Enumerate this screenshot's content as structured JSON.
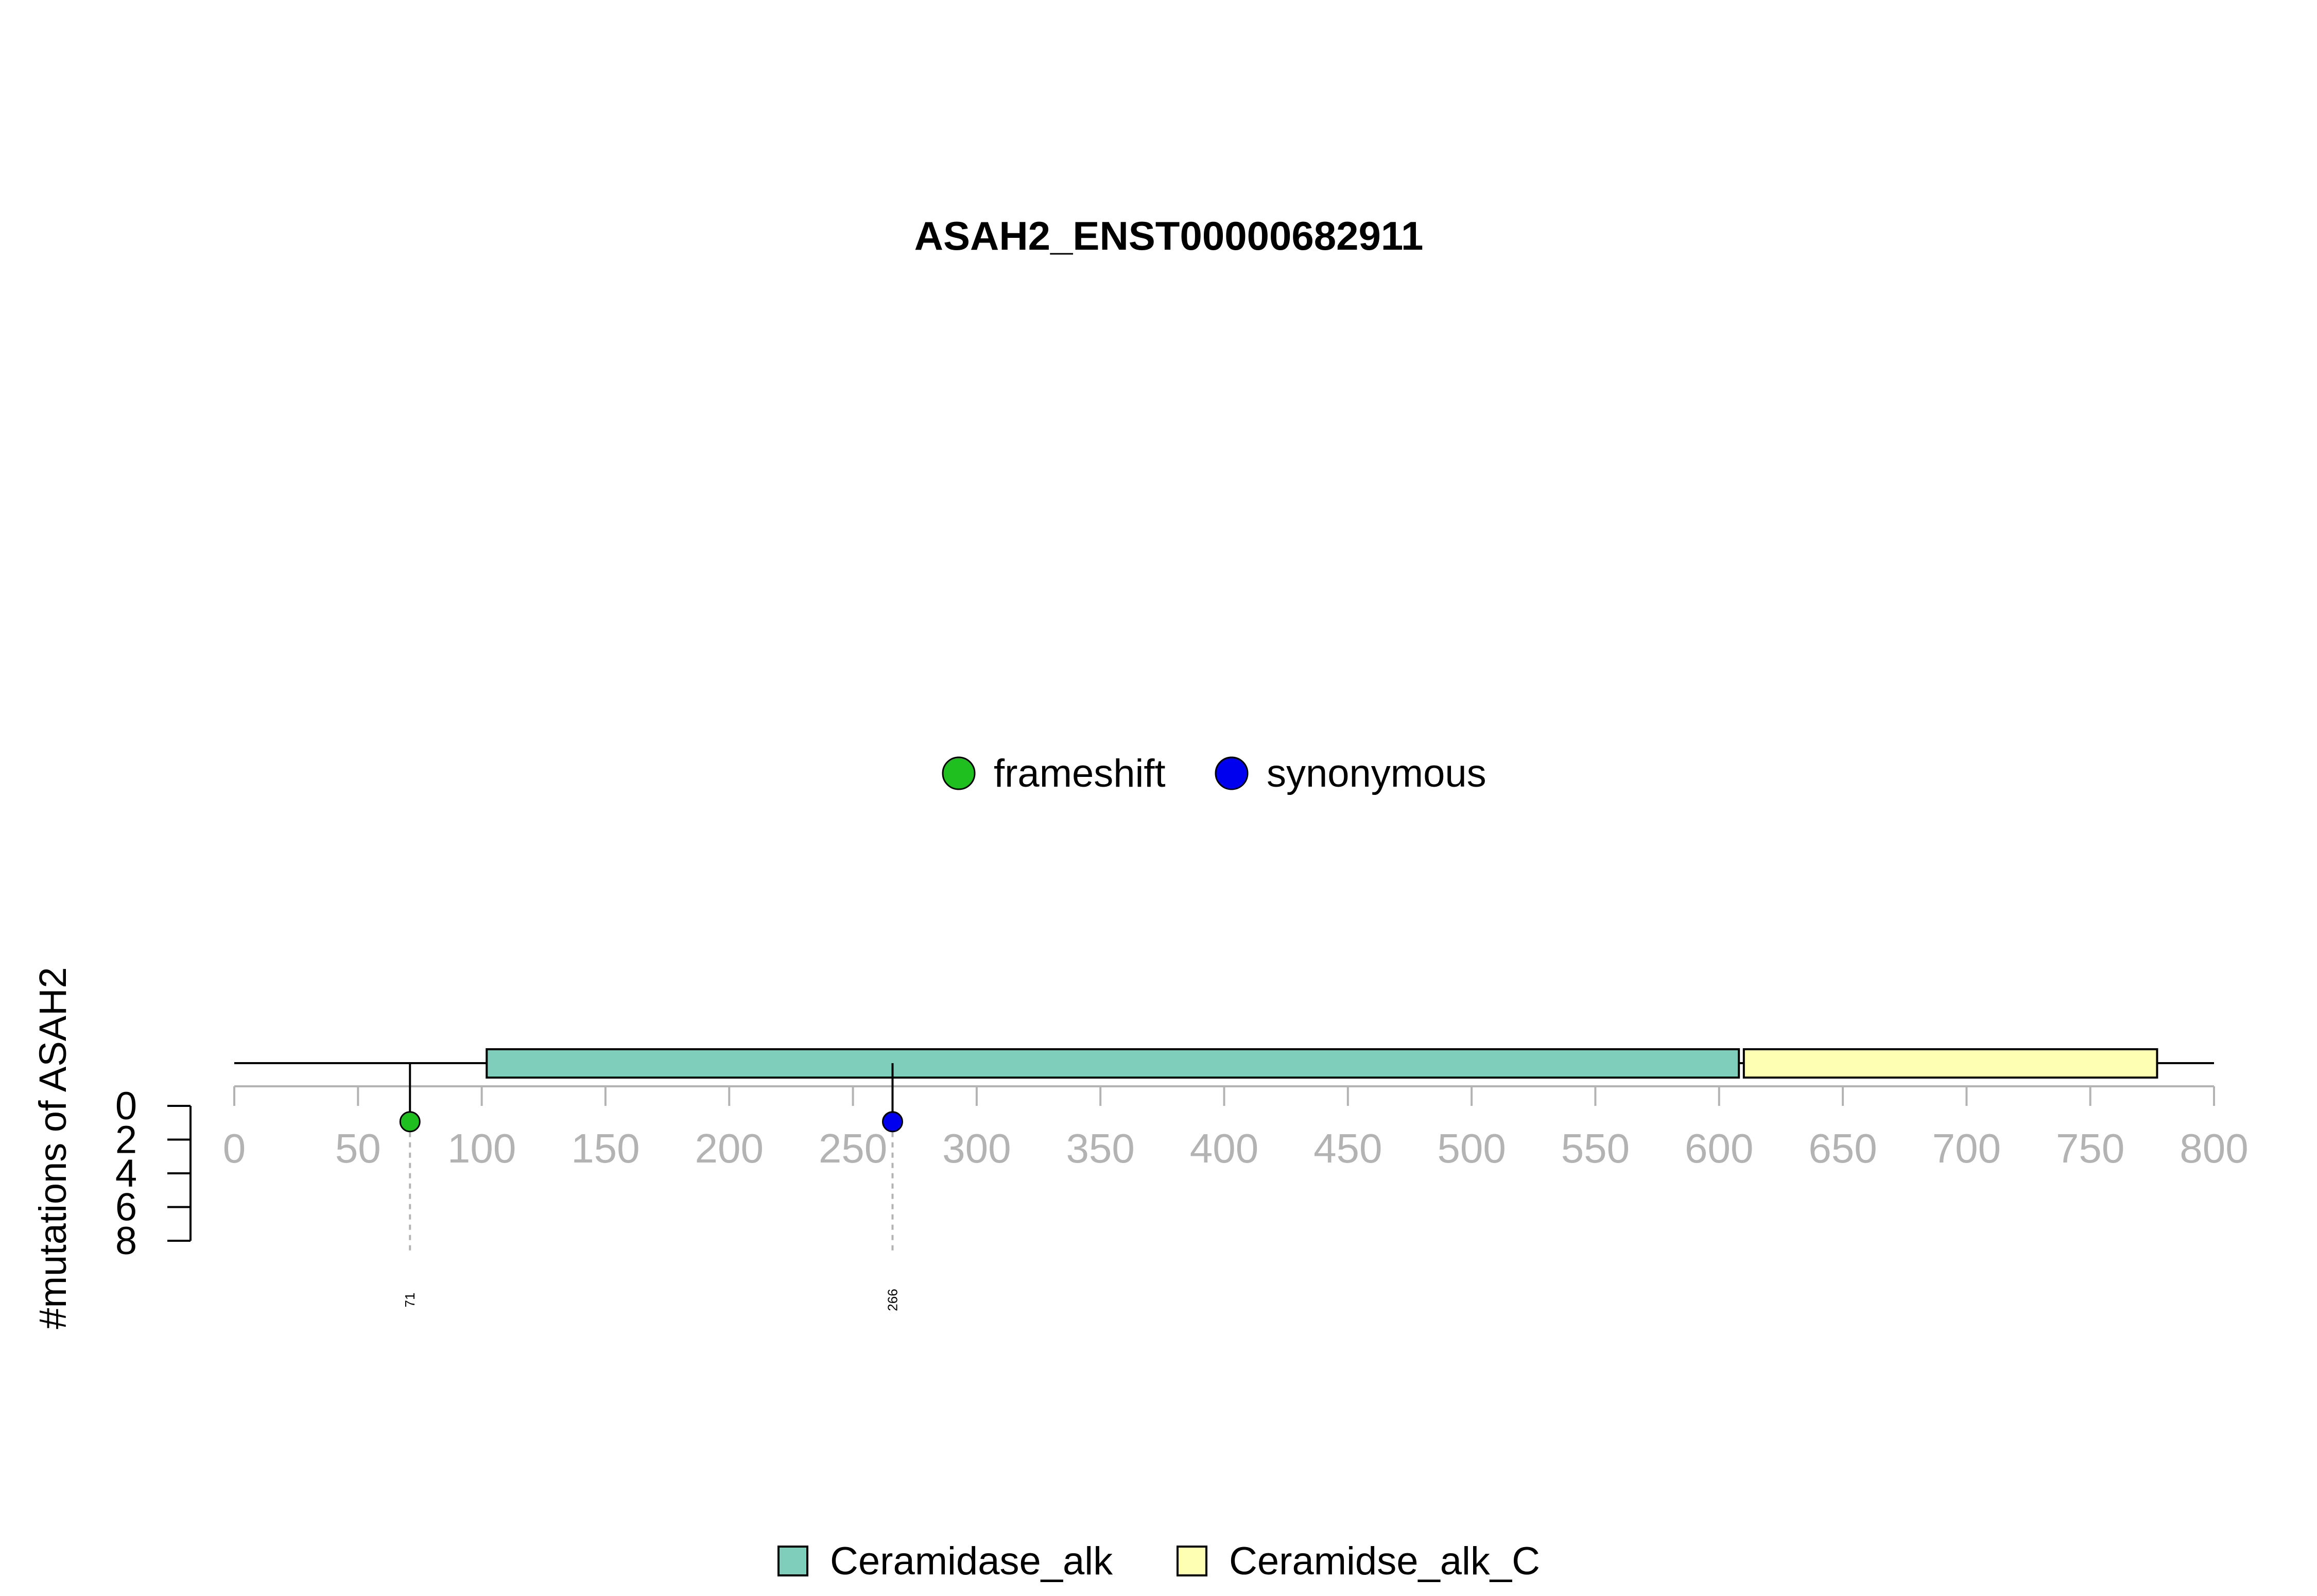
{
  "chart_data": {
    "type": "lollipop",
    "title": "ASAH2_ENST00000682911",
    "ylabel": "#mutations of ASAH2",
    "protein_length": 800,
    "xlim": [
      0,
      800
    ],
    "ylim": [
      0,
      8
    ],
    "x_ticks": [
      "0",
      "50",
      "100",
      "150",
      "200",
      "250",
      "300",
      "350",
      "400",
      "450",
      "500",
      "550",
      "600",
      "650",
      "700",
      "750",
      "800"
    ],
    "y_ticks": [
      "0",
      "2",
      "4",
      "6",
      "8"
    ],
    "mutation_types": [
      {
        "name": "frameshift",
        "color": "#1fbf1f"
      },
      {
        "name": "synonymous",
        "color": "#0000ee"
      }
    ],
    "mutations": [
      {
        "position": 71,
        "label": "71",
        "count": 1,
        "type": "frameshift"
      },
      {
        "position": 266,
        "label": "266",
        "count": 1,
        "type": "synonymous"
      }
    ],
    "domains": [
      {
        "name": "Ceramidase_alk",
        "start": 102,
        "end": 608,
        "color": "#7fcdbb"
      },
      {
        "name": "Ceramidse_alk_C",
        "start": 610,
        "end": 777,
        "color": "#ffffb3"
      }
    ],
    "grid": false,
    "mutation_legend_placement": "top-center",
    "domain_legend_placement": "bottom-center"
  }
}
